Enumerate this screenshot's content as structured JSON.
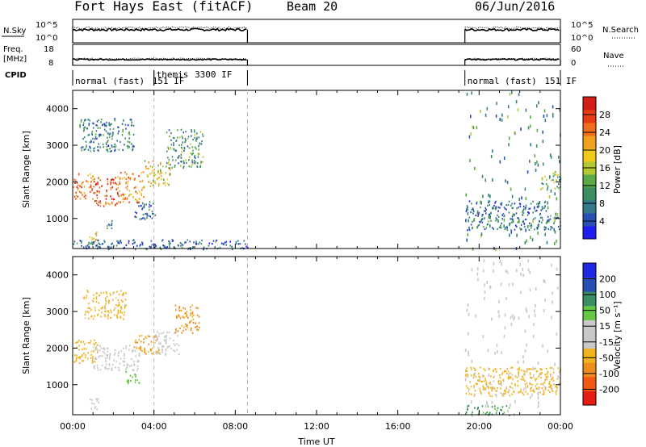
{
  "header": {
    "title": "Fort Hays East (fitACF)",
    "beam": "Beam 20",
    "date": "06/Jun/2016"
  },
  "colors": {
    "trace": "#000000",
    "gridline": "#b8b8b8"
  },
  "chart_data": [
    {
      "type": "line",
      "panel": "noise",
      "left_label": "N.Sky",
      "right_label": "N.Search",
      "left_ticks": [
        "10^5",
        "10^0"
      ],
      "right_ticks": [
        "10^5",
        "10^0"
      ],
      "ylim": [
        0,
        5
      ],
      "coverage_ut": [
        [
          0.0,
          8.6
        ],
        [
          19.3,
          24.0
        ]
      ],
      "series": [
        {
          "style": "solid",
          "level": 2.8
        },
        {
          "style": "dotted",
          "level": 3.2
        }
      ]
    },
    {
      "type": "line",
      "panel": "frequency",
      "left_label": "Freq.",
      "left_unit": "[MHz]",
      "right_label": "Nave",
      "left_ticks": [
        "18",
        "8"
      ],
      "right_ticks": [
        "60",
        "0"
      ],
      "ylim": [
        8,
        18
      ],
      "coverage_ut": [
        [
          0.0,
          8.6
        ],
        [
          19.3,
          24.0
        ]
      ],
      "series": [
        {
          "style": "solid",
          "level": 10.8
        },
        {
          "style": "dotted",
          "level": 11.2
        }
      ]
    },
    {
      "type": "table",
      "panel": "cpid",
      "label": "CPID",
      "segments": [
        {
          "start": 0.0,
          "end": 4.0,
          "text": "normal (fast)",
          "id": "151 IF"
        },
        {
          "start": 4.0,
          "end": 8.6,
          "text": "themis",
          "id": "3300 IF"
        },
        {
          "start": 19.3,
          "end": 24.0,
          "text": "normal (fast)",
          "id": "151 IF"
        }
      ]
    },
    {
      "type": "heatmap",
      "panel": "power",
      "ylabel": "Slant Range [km]",
      "xlim": [
        0,
        24
      ],
      "ylim": [
        180,
        4500
      ],
      "yticks": [
        1000,
        2000,
        3000,
        4000
      ],
      "vlines_ut": [
        4.0,
        8.6
      ],
      "colorbar": {
        "label": "Power [dB]",
        "range": [
          0,
          32
        ],
        "ticks": [
          "4",
          "8",
          "12",
          "16",
          "20",
          "24",
          "28"
        ],
        "colors": [
          "#1e1ef0",
          "#2850b4",
          "#347a8c",
          "#3c8c64",
          "#5aaa46",
          "#b4c832",
          "#f0c81e",
          "#f0a01e",
          "#f06e1e",
          "#e63c14",
          "#d21e14"
        ]
      },
      "regions": [
        {
          "t0": 0.0,
          "t1": 1.0,
          "r0": 1550,
          "r1": 2250,
          "v": 24
        },
        {
          "t0": 1.0,
          "t1": 2.2,
          "r0": 1350,
          "r1": 2150,
          "v": 27
        },
        {
          "t0": 2.2,
          "t1": 3.5,
          "r0": 1450,
          "r1": 2300,
          "v": 23
        },
        {
          "t0": 3.5,
          "t1": 4.8,
          "r0": 1900,
          "r1": 2600,
          "v": 19
        },
        {
          "t0": 4.6,
          "t1": 6.4,
          "r0": 2400,
          "r1": 3450,
          "v": 11
        },
        {
          "t0": 0.3,
          "t1": 3.0,
          "r0": 2850,
          "r1": 3750,
          "v": 8
        },
        {
          "t0": 3.0,
          "t1": 4.1,
          "r0": 1000,
          "r1": 1500,
          "v": 6
        },
        {
          "t0": 0.8,
          "t1": 1.3,
          "r0": 350,
          "r1": 650,
          "v": 20
        },
        {
          "t0": 1.6,
          "t1": 2.0,
          "r0": 700,
          "r1": 1000,
          "v": 9
        },
        {
          "t0": 19.3,
          "t1": 23.3,
          "r0": 1100,
          "r1": 1500,
          "v": 6
        },
        {
          "t0": 19.3,
          "t1": 24.0,
          "r0": 700,
          "r1": 1100,
          "v": 8
        },
        {
          "t0": 23.0,
          "t1": 24.0,
          "r0": 1800,
          "r1": 2300,
          "v": 13
        },
        {
          "t0": 19.3,
          "t1": 24.0,
          "r0": 180,
          "r1": 4500,
          "v": 10
        },
        {
          "t0": 0.0,
          "t1": 8.6,
          "r0": 180,
          "r1": 450,
          "v": 6
        }
      ]
    },
    {
      "type": "heatmap",
      "panel": "velocity",
      "ylabel": "Slant Range [km]",
      "xlabel": "Time UT",
      "xlim": [
        0,
        24
      ],
      "ylim": [
        180,
        4500
      ],
      "yticks": [
        1000,
        2000,
        3000,
        4000
      ],
      "vlines_ut": [
        4.0,
        8.6
      ],
      "xticks": [
        "00:00",
        "04:00",
        "08:00",
        "12:00",
        "16:00",
        "20:00",
        "00:00"
      ],
      "xtick_values": [
        0,
        4,
        8,
        12,
        16,
        20,
        24
      ],
      "colorbar": {
        "label": "Velocity [m s⁻¹]",
        "ticks": [
          "-200",
          "-100",
          "-50",
          "-15",
          "15",
          "50",
          "100",
          "200"
        ],
        "colors": [
          "#e61e14",
          "#f05a14",
          "#f08c1e",
          "#f0b41e",
          "#c8c8c8",
          "#c8c8c8",
          "#64c846",
          "#3c8c64",
          "#2850b4",
          "#1e28dc"
        ]
      },
      "regions": [
        {
          "t0": 0.0,
          "t1": 1.2,
          "r0": 1600,
          "r1": 2250,
          "v": -40
        },
        {
          "t0": 1.0,
          "t1": 3.3,
          "r0": 1400,
          "r1": 2100,
          "v": 0
        },
        {
          "t0": 3.0,
          "t1": 4.3,
          "r0": 1850,
          "r1": 2400,
          "v": -60
        },
        {
          "t0": 4.0,
          "t1": 5.2,
          "r0": 1800,
          "r1": 2500,
          "v": 0
        },
        {
          "t0": 5.0,
          "t1": 6.2,
          "r0": 2400,
          "r1": 3200,
          "v": -70
        },
        {
          "t0": 0.5,
          "t1": 2.6,
          "r0": 2800,
          "r1": 3600,
          "v": -20
        },
        {
          "t0": 0.8,
          "t1": 1.4,
          "r0": 350,
          "r1": 650,
          "v": 5
        },
        {
          "t0": 2.6,
          "t1": 3.3,
          "r0": 1050,
          "r1": 1400,
          "v": 30
        },
        {
          "t0": 19.3,
          "t1": 24.0,
          "r0": 180,
          "r1": 4500,
          "v": 0
        },
        {
          "t0": 19.3,
          "t1": 24.0,
          "r0": 700,
          "r1": 1500,
          "v": -20
        },
        {
          "t0": 19.3,
          "t1": 21.5,
          "r0": 180,
          "r1": 450,
          "v": 60
        }
      ]
    }
  ]
}
